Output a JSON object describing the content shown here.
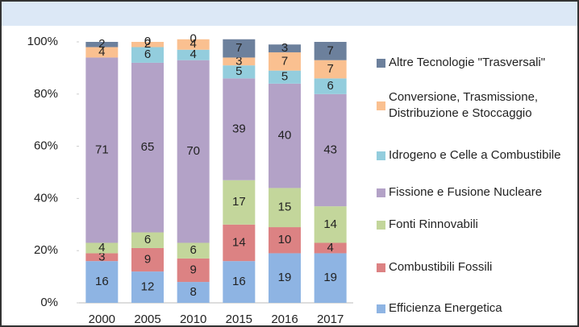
{
  "chart_data": {
    "type": "stacked_bar",
    "categories": [
      "2000",
      "2005",
      "2010",
      "2015",
      "2016",
      "2017"
    ],
    "series": [
      {
        "name": "Efficienza Energetica",
        "color": "#8eb4e3",
        "values": [
          16,
          12,
          8,
          16,
          19,
          19
        ]
      },
      {
        "name": "Combustibili Fossili",
        "color": "#dc8283",
        "values": [
          3,
          9,
          9,
          14,
          10,
          4
        ]
      },
      {
        "name": "Fonti Rinnovabili",
        "color": "#c3d69b",
        "values": [
          4,
          6,
          6,
          17,
          15,
          14
        ]
      },
      {
        "name": "Fissione e Fusione Nucleare",
        "color": "#b3a2c7",
        "values": [
          71,
          65,
          70,
          39,
          40,
          43
        ]
      },
      {
        "name": "Idrogeno e Celle a Combustibile",
        "color": "#93cddd",
        "values": [
          null,
          6,
          4,
          5,
          5,
          6
        ]
      },
      {
        "name": "Conversione, Trasmissione, Distribuzione e Stoccaggio",
        "color": "#fac090",
        "values": [
          4,
          2,
          4,
          3,
          7,
          7
        ]
      },
      {
        "name": "Altre Tecnologie \"Trasversali\"",
        "color": "#6c809c",
        "values": [
          2,
          0,
          0,
          7,
          3,
          7
        ]
      }
    ],
    "ylim": [
      0,
      100
    ],
    "yticks": [
      {
        "value": 0,
        "label": "0%"
      },
      {
        "value": 20,
        "label": "20%"
      },
      {
        "value": 40,
        "label": "40%"
      },
      {
        "value": 60,
        "label": "60%"
      },
      {
        "value": 80,
        "label": "80%"
      },
      {
        "value": 100,
        "label": "100%"
      }
    ],
    "legend": "right"
  }
}
